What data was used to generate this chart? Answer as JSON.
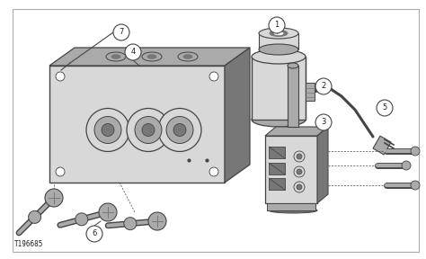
{
  "background_color": "#ffffff",
  "border_color": "#aaaaaa",
  "line_color": "#444444",
  "part_color": "#d8d8d8",
  "part_dark": "#aaaaaa",
  "part_darker": "#777777",
  "text_color": "#222222",
  "title_ref": "T196685",
  "figsize": [
    4.74,
    2.88
  ],
  "dpi": 100
}
